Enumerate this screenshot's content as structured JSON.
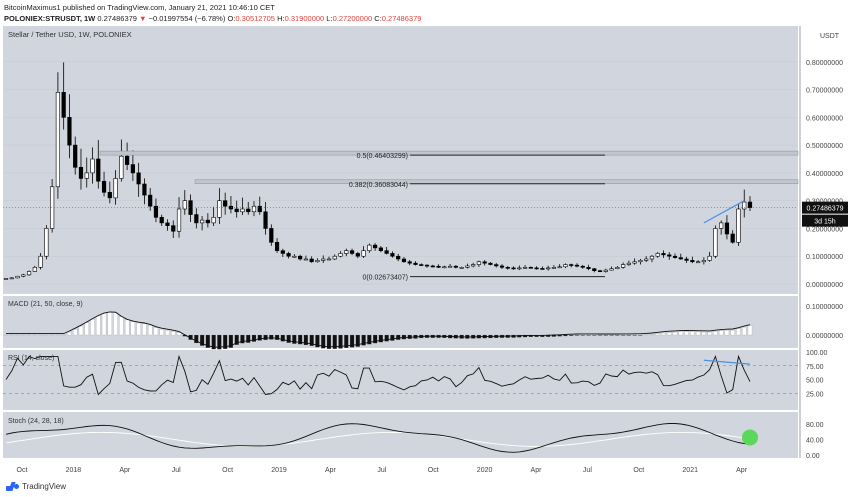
{
  "header": {
    "line1": "BitcoinMaximus1 published on TradingView.com, January 21, 2021 10:46:10 CET",
    "symbol": "POLONIEX:STRUSDT, 1W",
    "close": "0.27486379",
    "change_arrow": "▼",
    "change": "−0.01997554 (−6.78%)",
    "o": "O:",
    "o_val": "0.30512705",
    "h": "H:",
    "h_val": "0.31900000",
    "l": "L:",
    "l_val": "0.27200000",
    "c": "C:",
    "c_val": "0.27486379"
  },
  "footer": {
    "brand": "TradingView"
  },
  "colors": {
    "panel_bg": "#d1d5de",
    "bull": "#ffffff",
    "bear": "#000000",
    "fib_line": "#222222",
    "trend": "#4a90e2",
    "stoch_marker": "#5bd75b",
    "accent_red": "#e0443e"
  },
  "chart_data": [
    {
      "type": "candlestick",
      "title": "Stellar / Tether USD, 1W, POLONIEX",
      "ylabel": "USDT",
      "ylim": [
        0,
        0.9
      ],
      "yticks": [
        "0.80000000",
        "0.70000000",
        "0.60000000",
        "0.50000000",
        "0.40000000",
        "0.30000000",
        "0.20000000",
        "0.10000000",
        "0.00000000"
      ],
      "ytick_values": [
        0.8,
        0.7,
        0.6,
        0.5,
        0.4,
        0.3,
        0.2,
        0.1,
        0.0
      ],
      "x_ticks": [
        "Oct",
        "2018",
        "Apr",
        "Jul",
        "Oct",
        "2019",
        "Apr",
        "Jul",
        "Oct",
        "2020",
        "Apr",
        "Jul",
        "Oct",
        "2021",
        "Apr"
      ],
      "last_price_label": "0.27486379",
      "countdown_label": "3d 15h",
      "fib_levels": [
        {
          "label": "0.5(0.46403299)",
          "value": 0.46403299
        },
        {
          "label": "0.382(0.36083044)",
          "value": 0.36083044
        },
        {
          "label": "0(0.02673407)",
          "value": 0.02673407
        }
      ],
      "close_path": [
        0.02,
        0.022,
        0.028,
        0.033,
        0.045,
        0.06,
        0.1,
        0.2,
        0.35,
        0.69,
        0.6,
        0.5,
        0.42,
        0.38,
        0.4,
        0.45,
        0.37,
        0.33,
        0.31,
        0.38,
        0.46,
        0.43,
        0.4,
        0.36,
        0.32,
        0.28,
        0.24,
        0.22,
        0.21,
        0.19,
        0.27,
        0.3,
        0.25,
        0.22,
        0.23,
        0.22,
        0.24,
        0.3,
        0.28,
        0.27,
        0.26,
        0.27,
        0.26,
        0.28,
        0.26,
        0.2,
        0.15,
        0.12,
        0.11,
        0.1,
        0.1,
        0.09,
        0.09,
        0.08,
        0.085,
        0.09,
        0.09,
        0.1,
        0.11,
        0.12,
        0.11,
        0.1,
        0.12,
        0.14,
        0.13,
        0.12,
        0.11,
        0.1,
        0.09,
        0.08,
        0.075,
        0.07,
        0.068,
        0.065,
        0.064,
        0.06,
        0.062,
        0.064,
        0.06,
        0.06,
        0.065,
        0.07,
        0.08,
        0.075,
        0.07,
        0.065,
        0.06,
        0.058,
        0.057,
        0.058,
        0.06,
        0.058,
        0.056,
        0.055,
        0.058,
        0.06,
        0.062,
        0.07,
        0.068,
        0.064,
        0.06,
        0.055,
        0.048,
        0.045,
        0.05,
        0.055,
        0.06,
        0.07,
        0.075,
        0.08,
        0.085,
        0.09,
        0.1,
        0.11,
        0.105,
        0.1,
        0.095,
        0.09,
        0.085,
        0.08,
        0.08,
        0.085,
        0.1,
        0.2,
        0.22,
        0.18,
        0.15,
        0.27,
        0.295,
        0.275
      ]
    },
    {
      "type": "line",
      "title": "MACD (21, 50, close, 9)",
      "yticks": [
        "0.10000000",
        "0.00000000"
      ],
      "ytick_values": [
        0.1,
        0.0
      ]
    },
    {
      "type": "line",
      "title": "RSI (14, close)",
      "yticks": [
        "100.00",
        "75.00",
        "50.00",
        "25.00"
      ],
      "ytick_values": [
        100,
        75,
        50,
        25
      ]
    },
    {
      "type": "line",
      "title": "Stoch (24, 28, 18)",
      "yticks": [
        "80.00",
        "40.00",
        "0.00"
      ],
      "ytick_values": [
        80,
        40,
        0
      ]
    }
  ]
}
